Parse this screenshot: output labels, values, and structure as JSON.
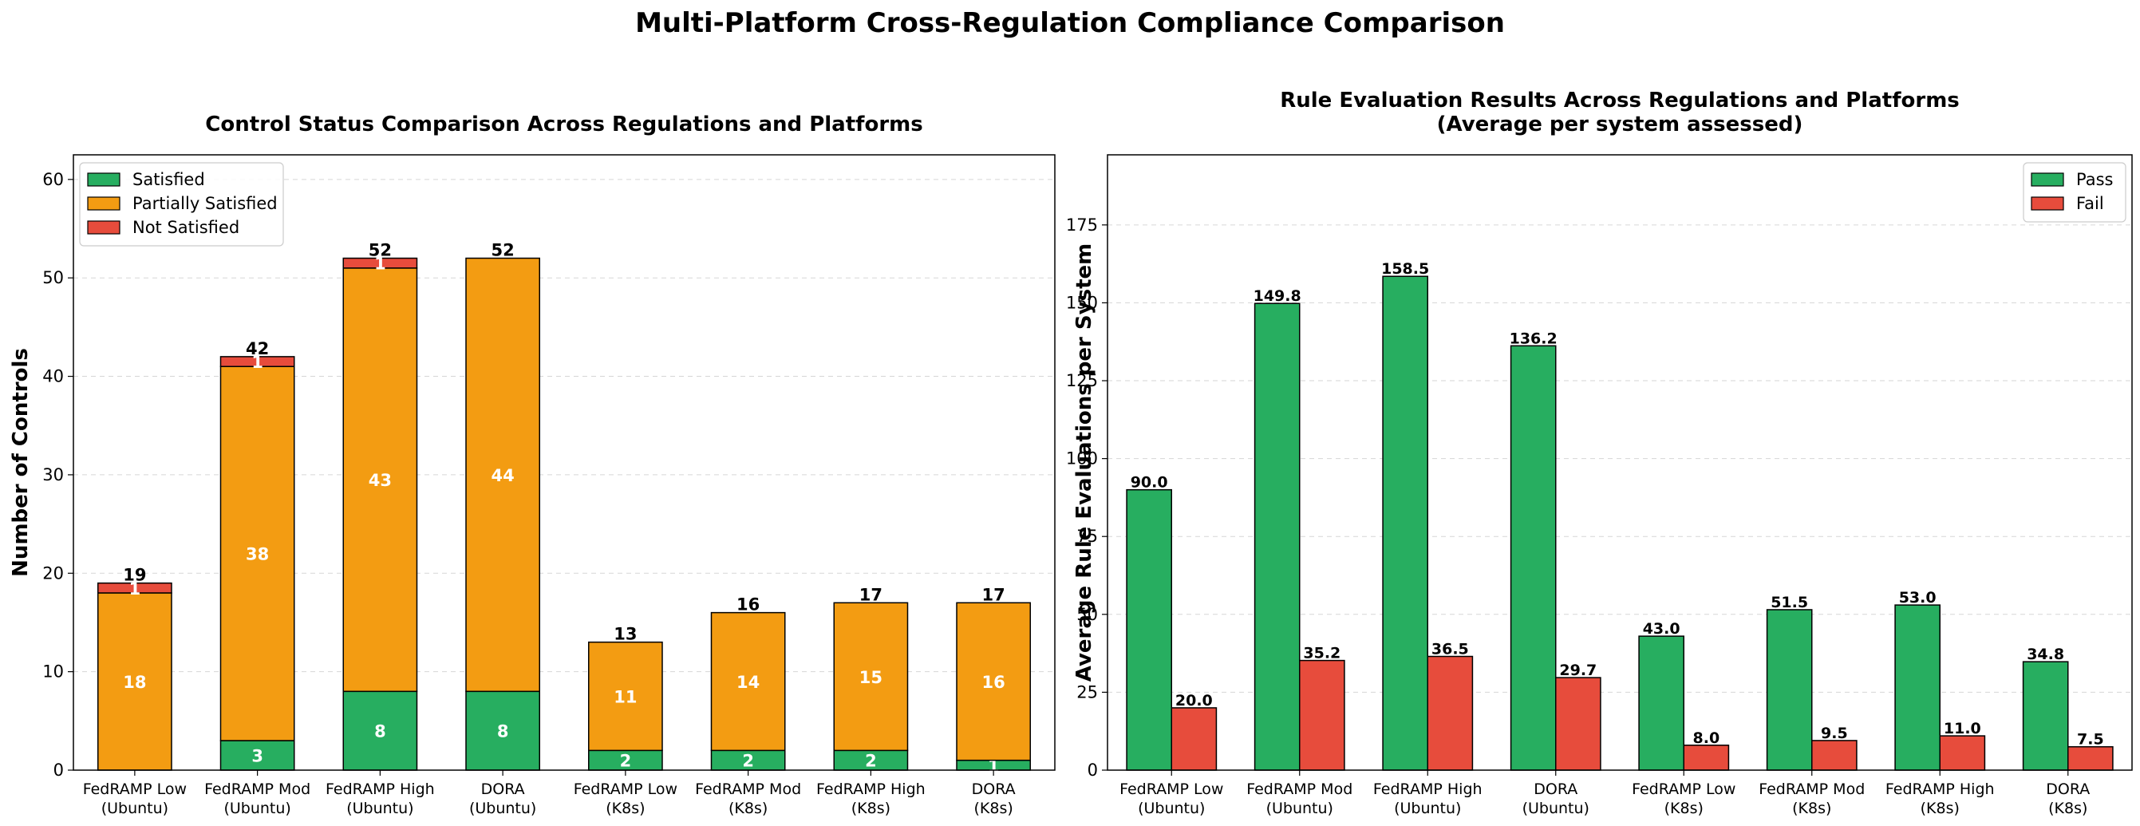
{
  "figure": {
    "suptitle": "Multi-Platform Cross-Regulation Compliance Comparison"
  },
  "colors": {
    "satisfied": "#27ae60",
    "partial": "#f39c12",
    "not_satisfied": "#e74c3c",
    "pass": "#27ae60",
    "fail": "#e74c3c"
  },
  "chart_data": [
    {
      "type": "bar",
      "stacked": true,
      "title": "Control Status Comparison Across Regulations and Platforms",
      "xlabel": "",
      "ylabel": "Number of Controls",
      "ylim": [
        0,
        62.5
      ],
      "yticks": [
        0,
        10,
        20,
        30,
        40,
        50,
        60
      ],
      "grid": true,
      "legend_position": "upper-left",
      "categories": [
        [
          "FedRAMP Low",
          "(Ubuntu)"
        ],
        [
          "FedRAMP Mod",
          "(Ubuntu)"
        ],
        [
          "FedRAMP High",
          "(Ubuntu)"
        ],
        [
          "DORA",
          "(Ubuntu)"
        ],
        [
          "FedRAMP Low",
          "(K8s)"
        ],
        [
          "FedRAMP Mod",
          "(K8s)"
        ],
        [
          "FedRAMP High",
          "(K8s)"
        ],
        [
          "DORA",
          "(K8s)"
        ]
      ],
      "series": [
        {
          "name": "Satisfied",
          "color_key": "satisfied",
          "values": [
            0,
            3,
            8,
            8,
            2,
            2,
            2,
            1
          ]
        },
        {
          "name": "Partially Satisfied",
          "color_key": "partial",
          "values": [
            18,
            38,
            43,
            44,
            11,
            14,
            15,
            16
          ]
        },
        {
          "name": "Not Satisfied",
          "color_key": "not_satisfied",
          "values": [
            1,
            1,
            1,
            0,
            0,
            0,
            0,
            0
          ]
        }
      ],
      "totals": [
        19,
        42,
        52,
        52,
        13,
        16,
        17,
        17
      ]
    },
    {
      "type": "bar",
      "stacked": false,
      "title": [
        "Rule Evaluation Results Across Regulations and Platforms",
        "(Average per system assessed)"
      ],
      "xlabel": "",
      "ylabel": "Average Rule Evaluations per System",
      "ylim": [
        0,
        197.5
      ],
      "yticks": [
        0,
        25,
        50,
        75,
        100,
        125,
        150,
        175
      ],
      "grid": true,
      "legend_position": "upper-right",
      "categories": [
        [
          "FedRAMP Low",
          "(Ubuntu)"
        ],
        [
          "FedRAMP Mod",
          "(Ubuntu)"
        ],
        [
          "FedRAMP High",
          "(Ubuntu)"
        ],
        [
          "DORA",
          "(Ubuntu)"
        ],
        [
          "FedRAMP Low",
          "(K8s)"
        ],
        [
          "FedRAMP Mod",
          "(K8s)"
        ],
        [
          "FedRAMP High",
          "(K8s)"
        ],
        [
          "DORA",
          "(K8s)"
        ]
      ],
      "series": [
        {
          "name": "Pass",
          "color_key": "pass",
          "values": [
            90.0,
            149.8,
            158.5,
            136.2,
            43.0,
            51.5,
            53.0,
            34.8
          ]
        },
        {
          "name": "Fail",
          "color_key": "fail",
          "values": [
            20.0,
            35.2,
            36.5,
            29.7,
            8.0,
            9.5,
            11.0,
            7.5
          ]
        }
      ]
    }
  ]
}
